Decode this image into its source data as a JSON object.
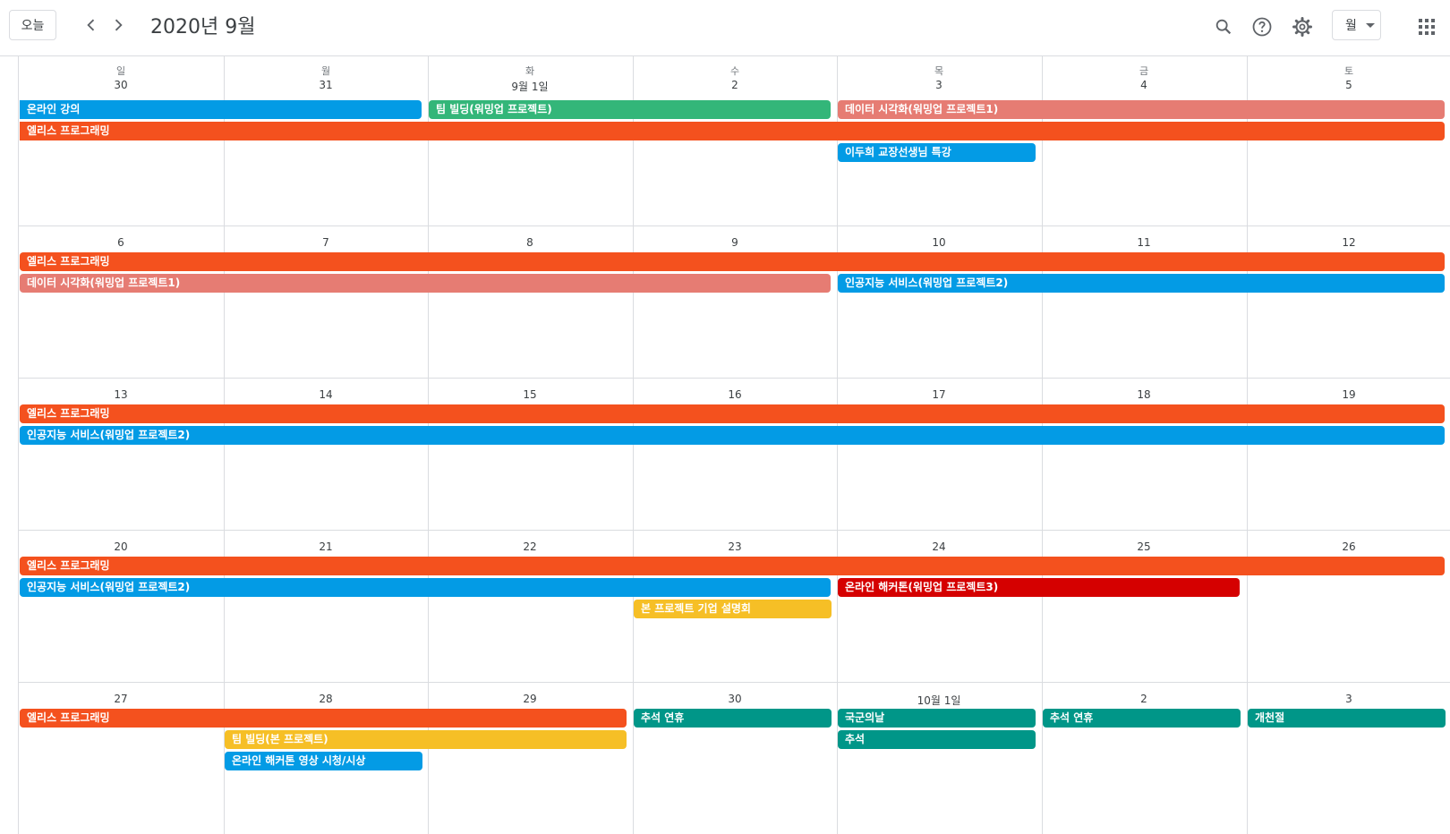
{
  "header": {
    "today_label": "오늘",
    "month_title": "2020년 9월",
    "view_label": "월",
    "icons": [
      "chevron-left-icon",
      "chevron-right-icon",
      "search-icon",
      "help-icon",
      "gear-icon",
      "apps-grid-icon"
    ]
  },
  "weekdays": [
    "일",
    "월",
    "화",
    "수",
    "목",
    "금",
    "토"
  ],
  "weeks": [
    {
      "days": [
        "30",
        "31",
        "9월 1일",
        "2",
        "3",
        "4",
        "5"
      ],
      "events": [
        {
          "label": "온라인 강의",
          "start": 0,
          "span": 2,
          "row": 0,
          "color": "#039be5",
          "cont": true
        },
        {
          "label": "팀 빌딩(워밍업 프로젝트)",
          "start": 2,
          "span": 2,
          "row": 0,
          "color": "#33b679",
          "cont": false
        },
        {
          "label": "데이터 시각화(워밍업 프로젝트1)",
          "start": 4,
          "span": 3,
          "row": 0,
          "color": "#e67c73",
          "cont": false
        },
        {
          "label": "엘리스 프로그래밍",
          "start": 0,
          "span": 7,
          "row": 1,
          "color": "#f4511e",
          "cont": true
        },
        {
          "label": "이두희 교장선생님 특강",
          "start": 4,
          "span": 1,
          "row": 2,
          "color": "#039be5",
          "cont": false
        }
      ]
    },
    {
      "days": [
        "6",
        "7",
        "8",
        "9",
        "10",
        "11",
        "12"
      ],
      "events": [
        {
          "label": "엘리스 프로그래밍",
          "start": 0,
          "span": 7,
          "row": 0,
          "color": "#f4511e",
          "cont": false
        },
        {
          "label": "데이터 시각화(워밍업 프로젝트1)",
          "start": 0,
          "span": 4,
          "row": 1,
          "color": "#e67c73",
          "cont": false
        },
        {
          "label": "인공지능 서비스(워밍업 프로젝트2)",
          "start": 4,
          "span": 3,
          "row": 1,
          "color": "#039be5",
          "cont": false
        }
      ]
    },
    {
      "days": [
        "13",
        "14",
        "15",
        "16",
        "17",
        "18",
        "19"
      ],
      "events": [
        {
          "label": "엘리스 프로그래밍",
          "start": 0,
          "span": 7,
          "row": 0,
          "color": "#f4511e",
          "cont": false
        },
        {
          "label": "인공지능 서비스(워밍업 프로젝트2)",
          "start": 0,
          "span": 7,
          "row": 1,
          "color": "#039be5",
          "cont": false
        }
      ]
    },
    {
      "days": [
        "20",
        "21",
        "22",
        "23",
        "24",
        "25",
        "26"
      ],
      "events": [
        {
          "label": "엘리스 프로그래밍",
          "start": 0,
          "span": 7,
          "row": 0,
          "color": "#f4511e",
          "cont": false
        },
        {
          "label": "인공지능 서비스(워밍업 프로젝트2)",
          "start": 0,
          "span": 4,
          "row": 1,
          "color": "#039be5",
          "cont": false
        },
        {
          "label": "온라인 해커톤(워밍업 프로젝트3)",
          "start": 4,
          "span": 2,
          "row": 1,
          "color": "#d50000",
          "cont": false
        },
        {
          "label": "본 프로젝트 기업 설명회",
          "start": 3,
          "span": 1,
          "row": 2,
          "color": "#f6bf26",
          "cont": false
        }
      ]
    },
    {
      "days": [
        "27",
        "28",
        "29",
        "30",
        "10월 1일",
        "2",
        "3"
      ],
      "events": [
        {
          "label": "엘리스 프로그래밍",
          "start": 0,
          "span": 3,
          "row": 0,
          "color": "#f4511e",
          "cont": false
        },
        {
          "label": "추석 연휴",
          "start": 3,
          "span": 1,
          "row": 0,
          "color": "#009688",
          "cont": false
        },
        {
          "label": "국군의날",
          "start": 4,
          "span": 1,
          "row": 0,
          "color": "#009688",
          "cont": false
        },
        {
          "label": "추석 연휴",
          "start": 5,
          "span": 1,
          "row": 0,
          "color": "#009688",
          "cont": false
        },
        {
          "label": "개천절",
          "start": 6,
          "span": 1,
          "row": 0,
          "color": "#009688",
          "cont": false
        },
        {
          "label": "팀 빌딩(본 프로젝트)",
          "start": 1,
          "span": 2,
          "row": 1,
          "color": "#f6bf26",
          "cont": false
        },
        {
          "label": "추석",
          "start": 4,
          "span": 1,
          "row": 1,
          "color": "#009688",
          "cont": false
        },
        {
          "label": "온라인 해커톤 영상 시청/시상",
          "start": 1,
          "span": 1,
          "row": 2,
          "color": "#039be5",
          "cont": false
        }
      ]
    }
  ]
}
